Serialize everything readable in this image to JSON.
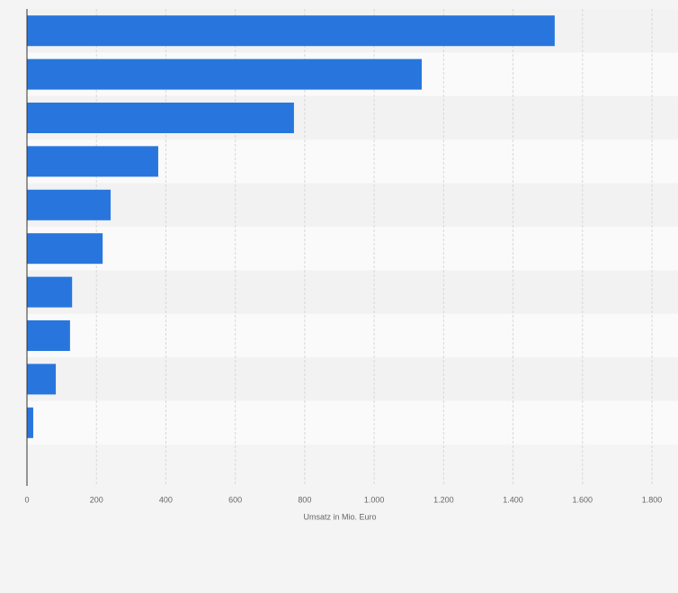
{
  "chart_data": {
    "type": "bar",
    "orientation": "horizontal",
    "xlabel": "Umsatz in Mio. Euro",
    "categories": [
      null,
      null,
      null,
      null,
      null,
      null,
      null,
      null,
      null,
      null
    ],
    "values": [
      1520,
      1137,
      769,
      378,
      241,
      218,
      130,
      124,
      83,
      18
    ],
    "color": "#2876dd",
    "xlim": [
      0,
      1800
    ],
    "xticks": [
      0,
      200,
      400,
      600,
      800,
      {
        "value": 1000,
        "label": "1.000"
      },
      {
        "value": 1200,
        "label": "1.200"
      },
      {
        "value": 1400,
        "label": "1.400"
      },
      {
        "value": 1600,
        "label": "1.600"
      },
      {
        "value": 1800,
        "label": "1.800"
      }
    ],
    "grid": true
  }
}
